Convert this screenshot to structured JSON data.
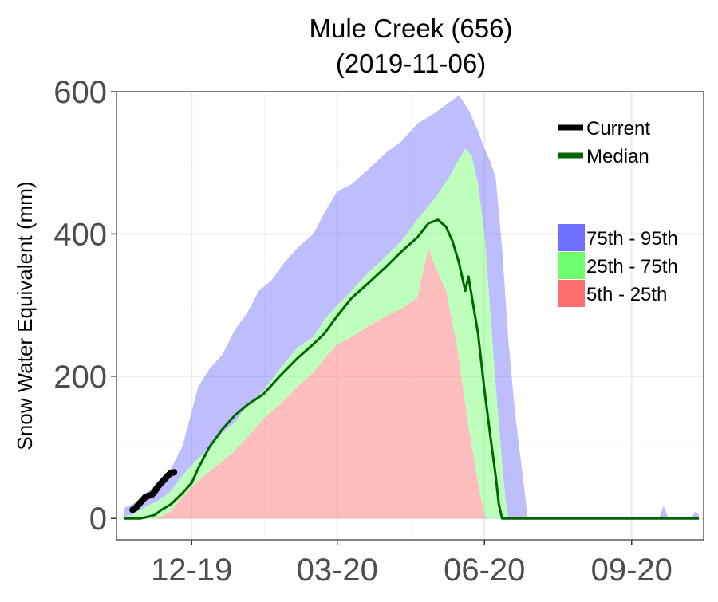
{
  "chart_data": {
    "type": "area",
    "title": "Mule Creek (656)",
    "subtitle": "(2019-11-06)",
    "ylabel": "Snow Water Equivalent (mm)",
    "xlabel": "",
    "xlim": [
      "2019-10-15",
      "2020-10-16"
    ],
    "ylim": [
      -30,
      600
    ],
    "y_ticks": [
      0,
      200,
      400,
      600
    ],
    "x_ticks": [
      {
        "date": "2019-12-01",
        "label": "12-19"
      },
      {
        "date": "2020-03-01",
        "label": "03-20"
      },
      {
        "date": "2020-06-01",
        "label": "06-20"
      },
      {
        "date": "2020-09-01",
        "label": "09-20"
      }
    ],
    "grid": true,
    "legend_position": "right",
    "legend_lines": [
      {
        "name": "Current",
        "color": "#000000"
      },
      {
        "name": "Median",
        "color": "#006400"
      }
    ],
    "legend_bands": [
      {
        "name": "75th - 95th",
        "color": "#6e6eff"
      },
      {
        "name": "25th - 75th",
        "color": "#6eff6e"
      },
      {
        "name": "5th - 25th",
        "color": "#ff6e6e"
      }
    ],
    "series": [
      {
        "name": "95th",
        "points": [
          [
            "2019-10-20",
            15
          ],
          [
            "2019-10-25",
            20
          ],
          [
            "2019-11-01",
            32
          ],
          [
            "2019-11-10",
            50
          ],
          [
            "2019-11-18",
            70
          ],
          [
            "2019-11-25",
            100
          ],
          [
            "2019-12-01",
            150
          ],
          [
            "2019-12-05",
            185
          ],
          [
            "2019-12-12",
            210
          ],
          [
            "2019-12-20",
            230
          ],
          [
            "2019-12-28",
            265
          ],
          [
            "2020-01-05",
            290
          ],
          [
            "2020-01-12",
            320
          ],
          [
            "2020-01-20",
            335
          ],
          [
            "2020-01-28",
            360
          ],
          [
            "2020-02-05",
            380
          ],
          [
            "2020-02-15",
            400
          ],
          [
            "2020-02-22",
            430
          ],
          [
            "2020-03-01",
            460
          ],
          [
            "2020-03-10",
            470
          ],
          [
            "2020-03-20",
            490
          ],
          [
            "2020-04-01",
            515
          ],
          [
            "2020-04-10",
            530
          ],
          [
            "2020-04-20",
            555
          ],
          [
            "2020-05-01",
            570
          ],
          [
            "2020-05-10",
            585
          ],
          [
            "2020-05-16",
            595
          ],
          [
            "2020-05-22",
            575
          ],
          [
            "2020-05-28",
            545
          ],
          [
            "2020-06-01",
            520
          ],
          [
            "2020-06-04",
            505
          ],
          [
            "2020-06-08",
            480
          ],
          [
            "2020-06-12",
            380
          ],
          [
            "2020-06-16",
            250
          ],
          [
            "2020-06-20",
            150
          ],
          [
            "2020-06-26",
            40
          ],
          [
            "2020-06-28",
            0
          ],
          [
            "2020-09-18",
            0
          ],
          [
            "2020-09-21",
            18
          ],
          [
            "2020-09-24",
            0
          ],
          [
            "2020-10-08",
            0
          ],
          [
            "2020-10-11",
            10
          ],
          [
            "2020-10-13",
            5
          ]
        ]
      },
      {
        "name": "75th",
        "points": [
          [
            "2019-10-20",
            3
          ],
          [
            "2019-10-25",
            5
          ],
          [
            "2019-11-01",
            15
          ],
          [
            "2019-11-10",
            25
          ],
          [
            "2019-11-18",
            38
          ],
          [
            "2019-11-25",
            60
          ],
          [
            "2019-12-01",
            75
          ],
          [
            "2019-12-10",
            95
          ],
          [
            "2019-12-20",
            120
          ],
          [
            "2019-12-28",
            135
          ],
          [
            "2020-01-05",
            160
          ],
          [
            "2020-01-15",
            180
          ],
          [
            "2020-01-25",
            210
          ],
          [
            "2020-02-05",
            240
          ],
          [
            "2020-02-15",
            255
          ],
          [
            "2020-02-22",
            280
          ],
          [
            "2020-03-01",
            300
          ],
          [
            "2020-03-10",
            320
          ],
          [
            "2020-03-20",
            345
          ],
          [
            "2020-04-01",
            370
          ],
          [
            "2020-04-10",
            390
          ],
          [
            "2020-04-20",
            420
          ],
          [
            "2020-05-01",
            450
          ],
          [
            "2020-05-10",
            480
          ],
          [
            "2020-05-16",
            505
          ],
          [
            "2020-05-20",
            520
          ],
          [
            "2020-05-24",
            510
          ],
          [
            "2020-05-28",
            470
          ],
          [
            "2020-06-01",
            400
          ],
          [
            "2020-06-05",
            280
          ],
          [
            "2020-06-09",
            160
          ],
          [
            "2020-06-12",
            80
          ],
          [
            "2020-06-14",
            30
          ],
          [
            "2020-06-16",
            0
          ],
          [
            "2020-10-13",
            0
          ]
        ]
      },
      {
        "name": "25th",
        "points": [
          [
            "2019-10-20",
            0
          ],
          [
            "2019-11-08",
            0
          ],
          [
            "2019-11-12",
            3
          ],
          [
            "2019-11-18",
            10
          ],
          [
            "2019-11-25",
            30
          ],
          [
            "2019-12-01",
            45
          ],
          [
            "2019-12-10",
            62
          ],
          [
            "2019-12-20",
            80
          ],
          [
            "2019-12-28",
            95
          ],
          [
            "2020-01-05",
            115
          ],
          [
            "2020-01-15",
            140
          ],
          [
            "2020-01-25",
            160
          ],
          [
            "2020-02-05",
            185
          ],
          [
            "2020-02-15",
            205
          ],
          [
            "2020-02-22",
            225
          ],
          [
            "2020-03-01",
            245
          ],
          [
            "2020-03-10",
            255
          ],
          [
            "2020-03-20",
            270
          ],
          [
            "2020-04-01",
            285
          ],
          [
            "2020-04-10",
            295
          ],
          [
            "2020-04-20",
            310
          ],
          [
            "2020-04-27",
            380
          ],
          [
            "2020-05-01",
            355
          ],
          [
            "2020-05-08",
            320
          ],
          [
            "2020-05-15",
            240
          ],
          [
            "2020-05-22",
            130
          ],
          [
            "2020-05-28",
            50
          ],
          [
            "2020-06-01",
            5
          ],
          [
            "2020-06-03",
            0
          ],
          [
            "2020-10-13",
            0
          ]
        ]
      },
      {
        "name": "5th",
        "points": [
          [
            "2019-10-20",
            0
          ],
          [
            "2020-10-13",
            0
          ]
        ]
      },
      {
        "name": "Median",
        "points": [
          [
            "2019-10-20",
            0
          ],
          [
            "2019-10-30",
            0
          ],
          [
            "2019-11-03",
            2
          ],
          [
            "2019-11-08",
            5
          ],
          [
            "2019-11-12",
            12
          ],
          [
            "2019-11-18",
            20
          ],
          [
            "2019-11-25",
            35
          ],
          [
            "2019-12-01",
            50
          ],
          [
            "2019-12-05",
            70
          ],
          [
            "2019-12-12",
            100
          ],
          [
            "2019-12-20",
            125
          ],
          [
            "2019-12-28",
            145
          ],
          [
            "2020-01-05",
            160
          ],
          [
            "2020-01-15",
            175
          ],
          [
            "2020-01-25",
            200
          ],
          [
            "2020-02-05",
            225
          ],
          [
            "2020-02-15",
            245
          ],
          [
            "2020-02-22",
            260
          ],
          [
            "2020-03-01",
            285
          ],
          [
            "2020-03-10",
            310
          ],
          [
            "2020-03-20",
            330
          ],
          [
            "2020-04-01",
            355
          ],
          [
            "2020-04-10",
            375
          ],
          [
            "2020-04-20",
            395
          ],
          [
            "2020-04-27",
            415
          ],
          [
            "2020-05-03",
            420
          ],
          [
            "2020-05-08",
            410
          ],
          [
            "2020-05-12",
            390
          ],
          [
            "2020-05-16",
            360
          ],
          [
            "2020-05-20",
            320
          ],
          [
            "2020-05-22",
            340
          ],
          [
            "2020-05-25",
            300
          ],
          [
            "2020-05-28",
            260
          ],
          [
            "2020-06-01",
            180
          ],
          [
            "2020-06-05",
            110
          ],
          [
            "2020-06-08",
            60
          ],
          [
            "2020-06-10",
            20
          ],
          [
            "2020-06-12",
            0
          ],
          [
            "2020-10-13",
            0
          ]
        ]
      },
      {
        "name": "Current",
        "points": [
          [
            "2019-10-25",
            12
          ],
          [
            "2019-10-27",
            15
          ],
          [
            "2019-10-29",
            20
          ],
          [
            "2019-10-31",
            25
          ],
          [
            "2019-11-02",
            30
          ],
          [
            "2019-11-04",
            32
          ],
          [
            "2019-11-06",
            33
          ],
          [
            "2019-11-08",
            38
          ],
          [
            "2019-11-10",
            45
          ],
          [
            "2019-11-12",
            50
          ],
          [
            "2019-11-14",
            55
          ],
          [
            "2019-11-16",
            60
          ],
          [
            "2019-11-18",
            64
          ],
          [
            "2019-11-20",
            65
          ]
        ]
      }
    ]
  }
}
